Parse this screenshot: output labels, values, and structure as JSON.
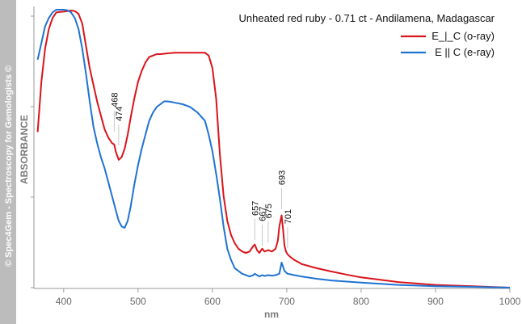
{
  "chart_data": {
    "type": "line",
    "title": "Unheated red ruby - 0.71 ct - Andilamena, Madagascar",
    "xlabel": "nm",
    "ylabel": "ABSORBANCE",
    "xlim": [
      360,
      1000
    ],
    "ylim": [
      0,
      1.0
    ],
    "x_ticks": [
      400,
      500,
      600,
      700,
      800,
      900,
      1000
    ],
    "grid": false,
    "legend_position": "top-right",
    "watermark": "© Spec4Gem - Spectroscopy for Gemologists ©",
    "series": [
      {
        "name": "E_|_C (o-ray)",
        "color": "#d9141b",
        "x": [
          365,
          370,
          375,
          380,
          385,
          390,
          395,
          400,
          405,
          410,
          415,
          420,
          425,
          430,
          435,
          440,
          445,
          450,
          455,
          460,
          465,
          468,
          470,
          474,
          478,
          482,
          486,
          490,
          495,
          500,
          505,
          510,
          515,
          520,
          525,
          530,
          540,
          550,
          560,
          570,
          580,
          590,
          595,
          600,
          605,
          610,
          615,
          620,
          625,
          630,
          635,
          640,
          645,
          650,
          655,
          657,
          660,
          663,
          667,
          670,
          675,
          680,
          685,
          688,
          690,
          693,
          695,
          697,
          699,
          701,
          705,
          710,
          720,
          740,
          760,
          780,
          800,
          850,
          900,
          950,
          1000
        ],
        "values": [
          0.56,
          0.74,
          0.86,
          0.93,
          0.97,
          0.99,
          0.992,
          0.993,
          0.995,
          0.997,
          0.995,
          0.985,
          0.95,
          0.87,
          0.79,
          0.73,
          0.67,
          0.62,
          0.57,
          0.54,
          0.52,
          0.515,
          0.49,
          0.46,
          0.47,
          0.5,
          0.55,
          0.61,
          0.68,
          0.74,
          0.78,
          0.81,
          0.83,
          0.835,
          0.84,
          0.84,
          0.843,
          0.845,
          0.845,
          0.845,
          0.845,
          0.845,
          0.835,
          0.79,
          0.68,
          0.48,
          0.33,
          0.24,
          0.19,
          0.16,
          0.14,
          0.13,
          0.125,
          0.13,
          0.15,
          0.155,
          0.135,
          0.125,
          0.14,
          0.13,
          0.135,
          0.13,
          0.14,
          0.17,
          0.22,
          0.26,
          0.21,
          0.15,
          0.13,
          0.12,
          0.11,
          0.1,
          0.085,
          0.07,
          0.058,
          0.047,
          0.037,
          0.02,
          0.01,
          0.005,
          0.0
        ]
      },
      {
        "name": "E || C (e-ray)",
        "color": "#1e73d2",
        "x": [
          365,
          370,
          375,
          380,
          385,
          390,
          395,
          400,
          405,
          410,
          415,
          420,
          425,
          430,
          435,
          440,
          445,
          450,
          455,
          460,
          465,
          470,
          474,
          478,
          482,
          486,
          490,
          495,
          500,
          505,
          510,
          515,
          520,
          525,
          530,
          535,
          540,
          545,
          550,
          560,
          570,
          580,
          590,
          595,
          600,
          605,
          610,
          615,
          620,
          625,
          630,
          640,
          650,
          655,
          657,
          660,
          663,
          667,
          670,
          675,
          680,
          685,
          690,
          693,
          695,
          697,
          699,
          701,
          705,
          710,
          720,
          740,
          760,
          800,
          850,
          900,
          950,
          1000
        ],
        "values": [
          0.82,
          0.88,
          0.94,
          0.97,
          0.99,
          1.0,
          1.0,
          1.0,
          0.998,
          0.99,
          0.97,
          0.93,
          0.86,
          0.77,
          0.67,
          0.58,
          0.52,
          0.47,
          0.43,
          0.38,
          0.33,
          0.28,
          0.24,
          0.22,
          0.215,
          0.24,
          0.29,
          0.37,
          0.44,
          0.5,
          0.55,
          0.6,
          0.63,
          0.65,
          0.66,
          0.67,
          0.67,
          0.668,
          0.665,
          0.66,
          0.65,
          0.63,
          0.6,
          0.55,
          0.49,
          0.41,
          0.32,
          0.22,
          0.14,
          0.1,
          0.07,
          0.05,
          0.04,
          0.045,
          0.05,
          0.045,
          0.04,
          0.045,
          0.042,
          0.045,
          0.043,
          0.045,
          0.05,
          0.09,
          0.075,
          0.06,
          0.055,
          0.05,
          0.048,
          0.045,
          0.04,
          0.032,
          0.026,
          0.018,
          0.01,
          0.005,
          0.003,
          0.0
        ]
      }
    ],
    "annotations": [
      {
        "text": "468",
        "x": 468,
        "y": 0.55
      },
      {
        "text": "474",
        "x": 474,
        "y": 0.5
      },
      {
        "text": "657",
        "x": 657,
        "y": 0.16
      },
      {
        "text": "667",
        "x": 667,
        "y": 0.14
      },
      {
        "text": "675",
        "x": 675,
        "y": 0.15
      },
      {
        "text": "693",
        "x": 693,
        "y": 0.27
      },
      {
        "text": "701",
        "x": 701,
        "y": 0.13
      }
    ]
  }
}
